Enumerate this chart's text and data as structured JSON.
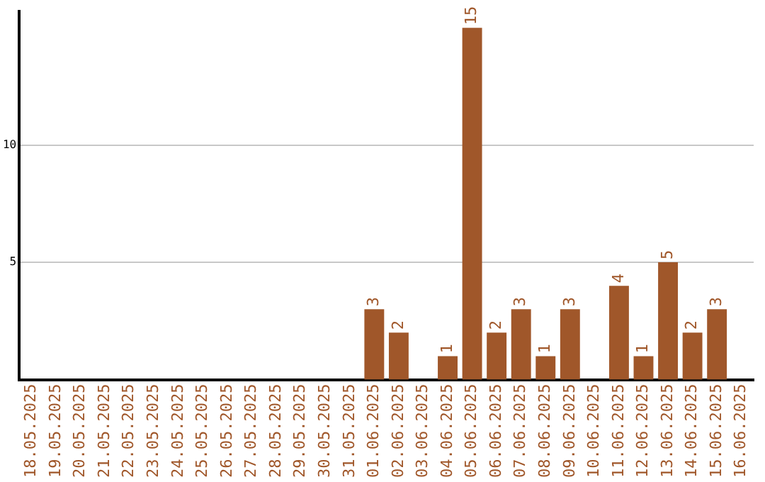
{
  "chart_data": {
    "type": "bar",
    "categories": [
      "18.05.2025",
      "19.05.2025",
      "20.05.2025",
      "21.05.2025",
      "22.05.2025",
      "23.05.2025",
      "24.05.2025",
      "25.05.2025",
      "26.05.2025",
      "27.05.2025",
      "28.05.2025",
      "29.05.2025",
      "30.05.2025",
      "31.05.2025",
      "01.06.2025",
      "02.06.2025",
      "03.06.2025",
      "04.06.2025",
      "05.06.2025",
      "06.06.2025",
      "07.06.2025",
      "08.06.2025",
      "09.06.2025",
      "10.06.2025",
      "11.06.2025",
      "12.06.2025",
      "13.06.2025",
      "14.06.2025",
      "15.06.2025",
      "16.06.2025"
    ],
    "values": [
      0,
      0,
      0,
      0,
      0,
      0,
      0,
      0,
      0,
      0,
      0,
      0,
      0,
      0,
      3,
      2,
      0,
      1,
      15,
      2,
      3,
      1,
      3,
      0,
      4,
      1,
      5,
      2,
      3,
      0
    ],
    "value_labels": [
      null,
      null,
      null,
      null,
      null,
      null,
      null,
      null,
      null,
      null,
      null,
      null,
      null,
      null,
      "3",
      "2",
      null,
      "1",
      "15",
      "2",
      "3",
      "1",
      "3",
      null,
      "4",
      "1",
      "5",
      "2",
      "3",
      null
    ],
    "color": "#a0572a",
    "ylim": [
      0,
      15.7
    ],
    "yticks": [
      5,
      10
    ],
    "grid": "y",
    "legend": false
  }
}
